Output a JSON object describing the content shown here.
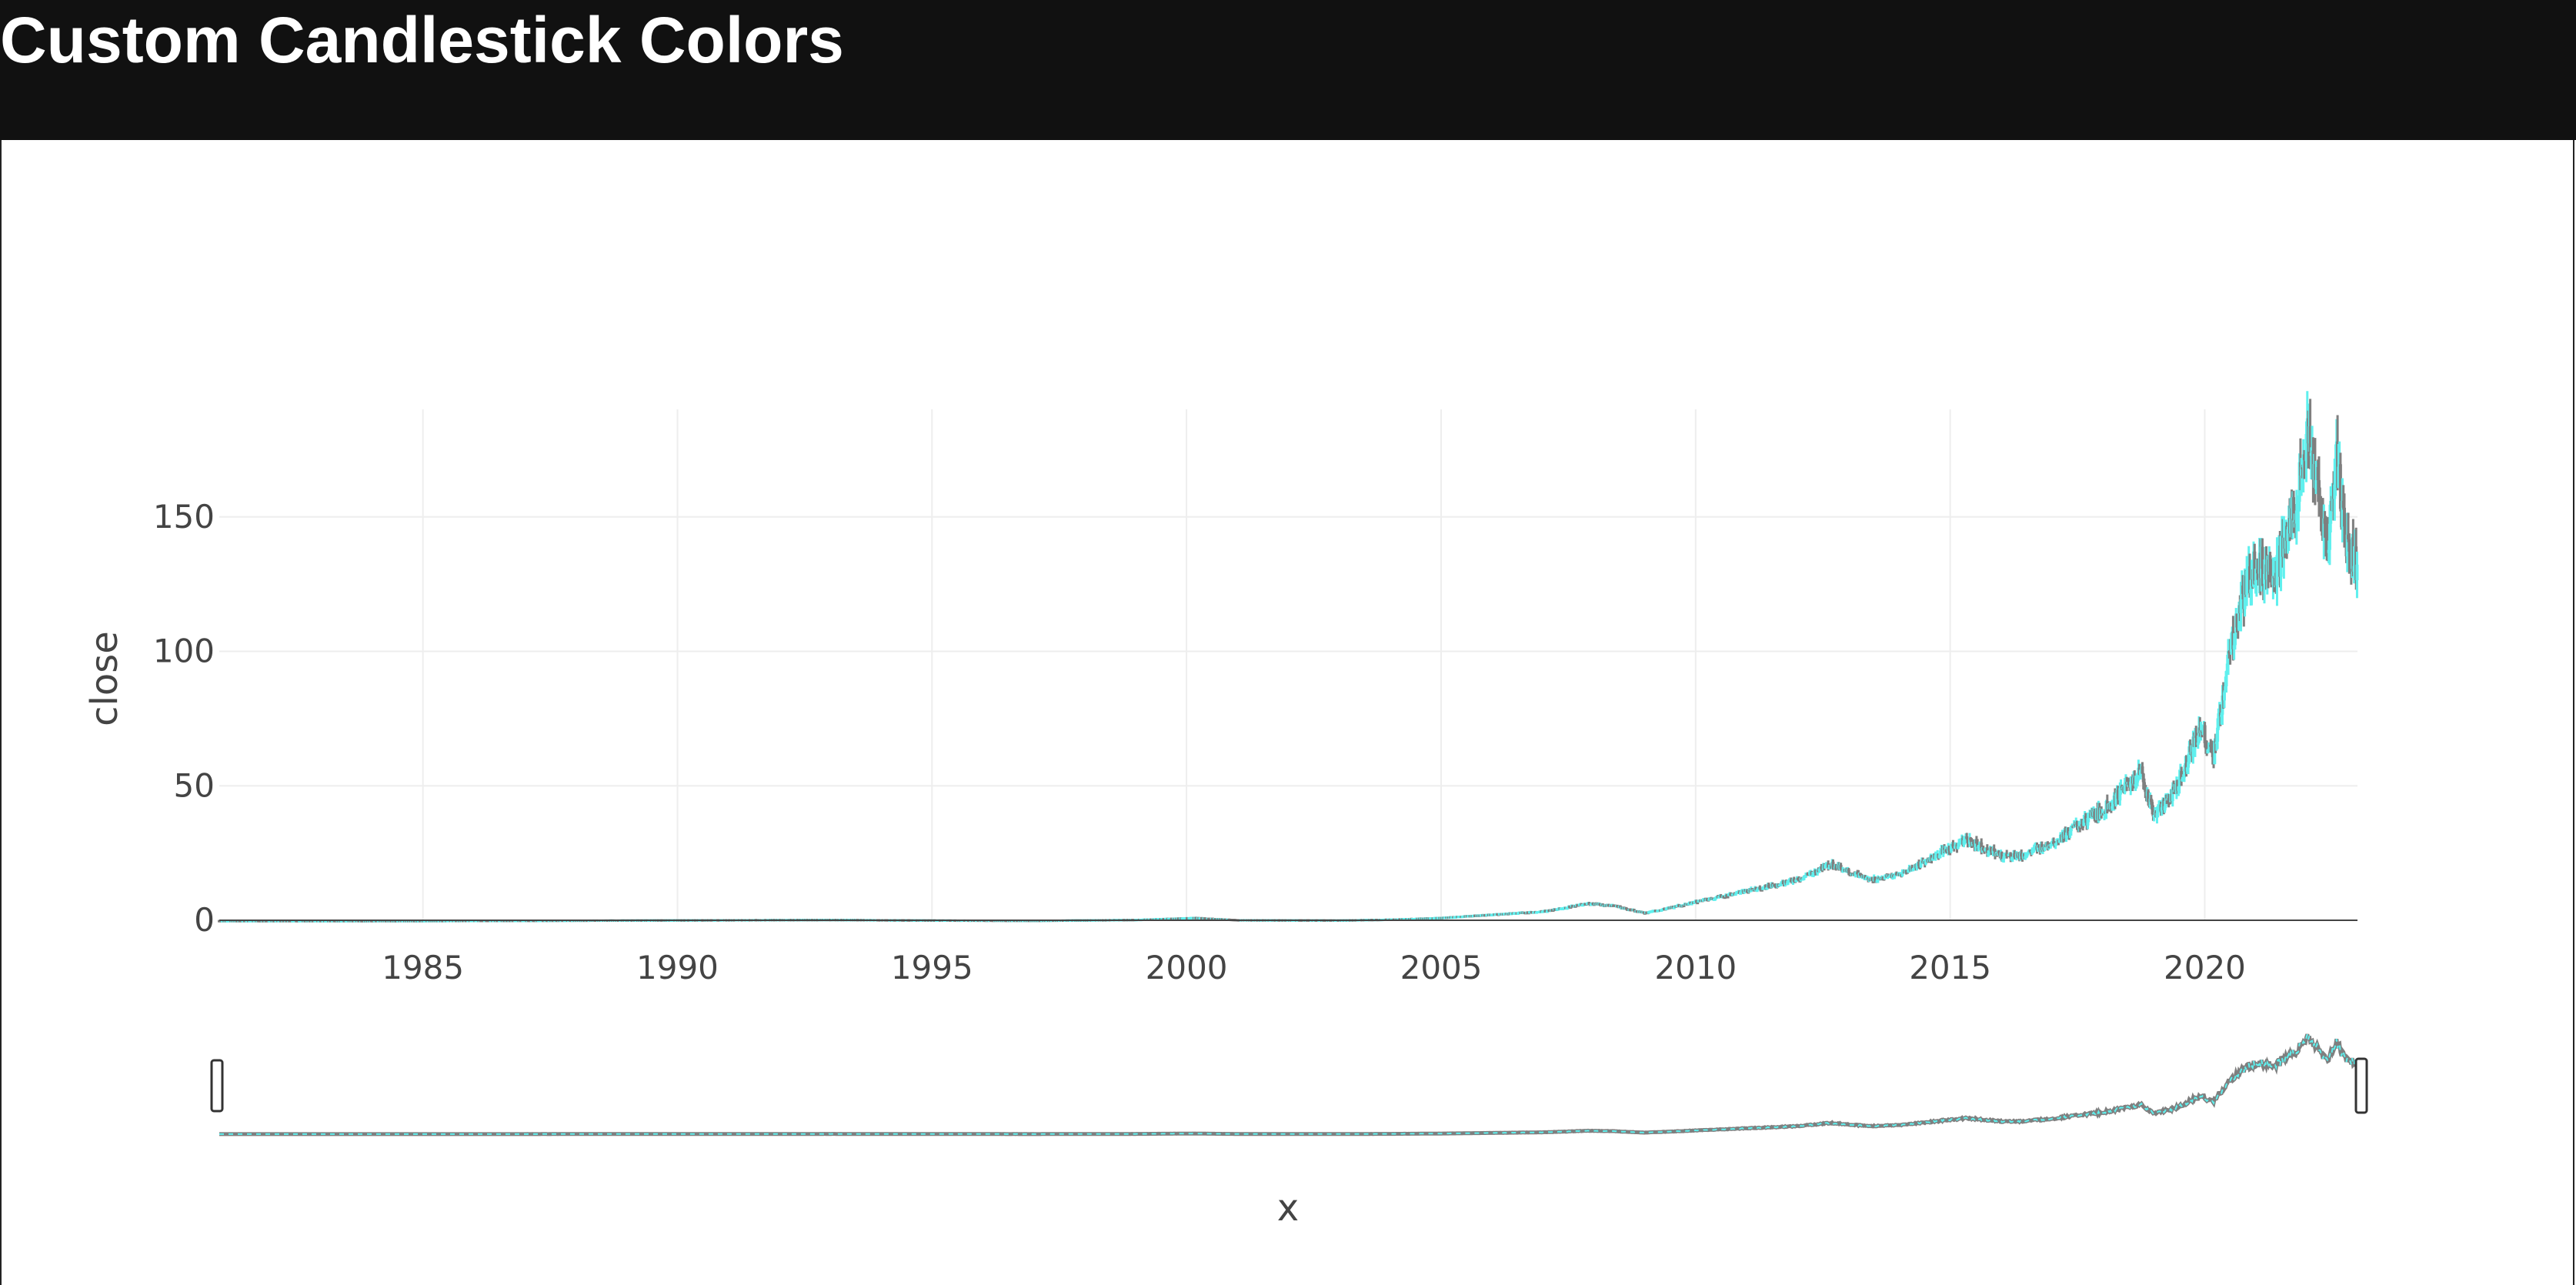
{
  "header": {
    "title": "Custom Candlestick Colors"
  },
  "colors": {
    "increasing": "#5ff0ee",
    "decreasing": "#7f7f7f",
    "grid": "#eeeeee",
    "zero_line": "#444444",
    "header_bg": "#111111",
    "text": "#444444"
  },
  "chart_data": {
    "type": "candlestick",
    "title": "",
    "xlabel": "x",
    "ylabel": "close",
    "xlim": [
      "1981-01-01",
      "2023-01-01"
    ],
    "ylim": [
      0,
      190
    ],
    "x_ticks": [
      "1985",
      "1990",
      "1995",
      "2000",
      "2005",
      "2010",
      "2015",
      "2020"
    ],
    "y_ticks": [
      0,
      50,
      100,
      150
    ],
    "grid": true,
    "legend": "none",
    "rangeslider": true,
    "increasing_color": "#5ff0ee",
    "decreasing_color": "#7f7f7f",
    "series": [
      {
        "x": [
          "1981-01-01",
          "1983-01-01",
          "1985-01-01",
          "1987-01-01",
          "1989-01-01",
          "1991-01-01",
          "1993-01-01",
          "1995-01-01",
          "1997-01-01",
          "1999-01-01",
          "2000-03-01",
          "2001-01-01",
          "2003-01-01",
          "2004-01-01",
          "2005-01-01",
          "2006-01-01",
          "2007-01-01",
          "2007-12-01",
          "2008-06-01",
          "2009-01-01",
          "2009-06-01",
          "2010-01-01",
          "2011-01-01",
          "2012-01-01",
          "2012-09-01",
          "2013-06-01",
          "2014-01-01",
          "2015-05-01",
          "2016-01-01",
          "2016-06-01",
          "2017-01-01",
          "2018-01-01",
          "2018-10-01",
          "2019-01-01",
          "2019-06-01",
          "2019-12-01",
          "2020-03-01",
          "2020-06-01",
          "2020-09-01",
          "2021-01-01",
          "2021-06-01",
          "2021-09-01",
          "2022-01-01",
          "2022-03-01",
          "2022-06-01",
          "2022-08-01",
          "2022-10-01",
          "2022-12-30"
        ],
        "close": [
          0.1,
          0.1,
          0.1,
          0.2,
          0.3,
          0.4,
          0.5,
          0.3,
          0.2,
          0.5,
          1.2,
          0.4,
          0.3,
          0.6,
          1.2,
          2.4,
          3.5,
          6.5,
          5.5,
          3.0,
          4.5,
          7.0,
          11.0,
          15.0,
          21.0,
          15.0,
          17.0,
          30.0,
          24.0,
          24.0,
          29.0,
          41.0,
          55.0,
          39.0,
          48.0,
          72.0,
          60.0,
          90.0,
          115.0,
          133.0,
          130.0,
          145.0,
          178.0,
          165.0,
          137.0,
          172.0,
          143.0,
          130.0
        ]
      }
    ]
  },
  "rangeslider": {
    "start": "1981-01-01",
    "end": "2022-12-30"
  }
}
